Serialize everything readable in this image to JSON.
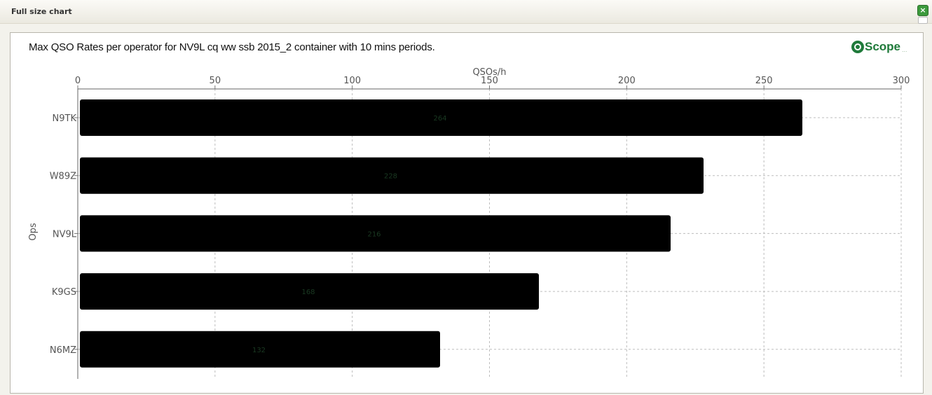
{
  "window": {
    "title": "Full size chart",
    "close_label": "×"
  },
  "logo": {
    "text": "Scope",
    "sub": "..."
  },
  "chart_data": {
    "type": "bar",
    "orientation": "horizontal",
    "title": "Max QSO Rates per operator for NV9L cq ww ssb 2015_2 container with 10 mins periods.",
    "xlabel": "QSOs/h",
    "ylabel": "Ops",
    "categories": [
      "N9TK",
      "W89Z",
      "NV9L",
      "K9GS",
      "N6MZ"
    ],
    "values": [
      264,
      228,
      216,
      168,
      132
    ],
    "xlim": [
      0,
      300
    ],
    "xticks": [
      0,
      50,
      100,
      150,
      200,
      250,
      300
    ],
    "x_axis_position": "top",
    "grid": true,
    "bar_color": "#000000"
  }
}
